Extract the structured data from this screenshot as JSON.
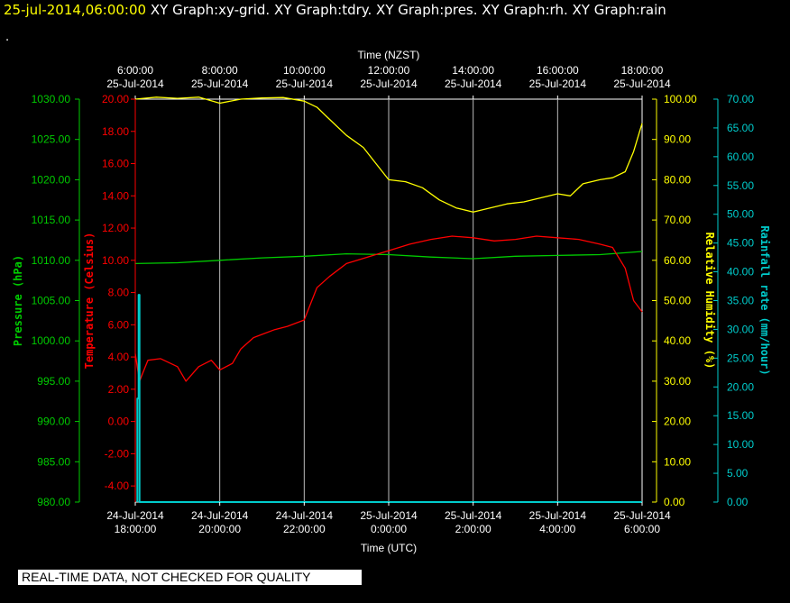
{
  "header": {
    "datetime": "25-jul-2014,06:00:00",
    "graph_titles": "XY Graph:xy-grid.  XY Graph:tdry.  XY Graph:pres.  XY Graph:rh.  XY Graph:rain"
  },
  "dot": ".",
  "disclaimer": "REAL-TIME DATA, NOT CHECKED FOR QUALITY",
  "colors": {
    "pressure": "#00cc00",
    "temperature": "#ff0000",
    "humidity": "#ffff00",
    "rainfall": "#00cccc",
    "grid": "#ffffff",
    "background": "#000000"
  },
  "chart_data": {
    "type": "line",
    "title": "",
    "x_top_label": "Time (NZST)",
    "x_bottom_label": "Time (UTC)",
    "x_range_hours_nzst": [
      6,
      18
    ],
    "x_ticks_top": [
      {
        "time": "6:00:00",
        "date": "25-Jul-2014"
      },
      {
        "time": "8:00:00",
        "date": "25-Jul-2014"
      },
      {
        "time": "10:00:00",
        "date": "25-Jul-2014"
      },
      {
        "time": "12:00:00",
        "date": "25-Jul-2014"
      },
      {
        "time": "14:00:00",
        "date": "25-Jul-2014"
      },
      {
        "time": "16:00:00",
        "date": "25-Jul-2014"
      },
      {
        "time": "18:00:00",
        "date": "25-Jul-2014"
      }
    ],
    "x_ticks_bottom": [
      {
        "date": "24-Jul-2014",
        "time": "18:00:00"
      },
      {
        "date": "24-Jul-2014",
        "time": "20:00:00"
      },
      {
        "date": "24-Jul-2014",
        "time": "22:00:00"
      },
      {
        "date": "25-Jul-2014",
        "time": "0:00:00"
      },
      {
        "date": "25-Jul-2014",
        "time": "2:00:00"
      },
      {
        "date": "25-Jul-2014",
        "time": "4:00:00"
      },
      {
        "date": "25-Jul-2014",
        "time": "6:00:00"
      }
    ],
    "axes": {
      "pressure": {
        "label": "Pressure (hPa)",
        "range": [
          980,
          1030
        ],
        "ticks": [
          "980.00",
          "985.00",
          "990.00",
          "995.00",
          "1000.00",
          "1005.00",
          "1010.00",
          "1015.00",
          "1020.00",
          "1025.00",
          "1030.00"
        ]
      },
      "temperature": {
        "label": "Temperature (Celsius)",
        "range": [
          -5,
          20
        ],
        "ticks": [
          "-4.00",
          "-2.00",
          "0.00",
          "2.00",
          "4.00",
          "6.00",
          "8.00",
          "10.00",
          "12.00",
          "14.00",
          "16.00",
          "18.00",
          "20.00"
        ]
      },
      "humidity": {
        "label": "Relative Humidity (%)",
        "range": [
          0,
          100
        ],
        "ticks": [
          "0.00",
          "10.00",
          "20.00",
          "30.00",
          "40.00",
          "50.00",
          "60.00",
          "70.00",
          "80.00",
          "90.00",
          "100.00"
        ]
      },
      "rainfall": {
        "label": "Rainfall rate (mm/hour)",
        "range": [
          0,
          70
        ],
        "ticks": [
          "0.00",
          "5.00",
          "10.00",
          "15.00",
          "20.00",
          "25.00",
          "30.00",
          "35.00",
          "40.00",
          "45.00",
          "50.00",
          "55.00",
          "60.00",
          "65.00",
          "70.00"
        ]
      }
    },
    "series": [
      {
        "name": "Pressure",
        "axis": "pressure",
        "x": [
          6.0,
          7.0,
          8.0,
          9.0,
          10.0,
          11.0,
          12.0,
          13.0,
          14.0,
          15.0,
          16.0,
          17.0,
          18.0
        ],
        "y": [
          1009.6,
          1009.7,
          1010.0,
          1010.3,
          1010.5,
          1010.8,
          1010.7,
          1010.4,
          1010.2,
          1010.5,
          1010.6,
          1010.7,
          1011.1
        ]
      },
      {
        "name": "Temperature",
        "axis": "temperature",
        "x": [
          6.0,
          6.1,
          6.3,
          6.6,
          7.0,
          7.2,
          7.5,
          7.8,
          8.0,
          8.3,
          8.5,
          8.8,
          9.0,
          9.3,
          9.6,
          10.0,
          10.3,
          10.6,
          11.0,
          11.5,
          12.0,
          12.5,
          13.0,
          13.5,
          14.0,
          14.5,
          15.0,
          15.5,
          16.0,
          16.5,
          17.0,
          17.3,
          17.6,
          17.8,
          18.0
        ],
        "y": [
          4.2,
          2.5,
          3.8,
          3.9,
          3.4,
          2.5,
          3.4,
          3.8,
          3.2,
          3.6,
          4.5,
          5.2,
          5.4,
          5.7,
          5.9,
          6.3,
          8.3,
          9.0,
          9.8,
          10.2,
          10.6,
          11.0,
          11.3,
          11.5,
          11.4,
          11.2,
          11.3,
          11.5,
          11.4,
          11.3,
          11.0,
          10.8,
          9.5,
          7.5,
          6.8
        ]
      },
      {
        "name": "Relative Humidity",
        "axis": "humidity",
        "x": [
          6.0,
          6.5,
          7.0,
          7.5,
          8.0,
          8.5,
          9.0,
          9.5,
          10.0,
          10.3,
          10.6,
          11.0,
          11.4,
          11.7,
          12.0,
          12.4,
          12.8,
          13.2,
          13.6,
          14.0,
          14.4,
          14.8,
          15.2,
          15.6,
          16.0,
          16.3,
          16.6,
          17.0,
          17.3,
          17.6,
          17.8,
          18.0
        ],
        "y": [
          100.0,
          100.5,
          100.2,
          100.5,
          99.0,
          100.0,
          100.3,
          100.4,
          99.5,
          98.0,
          95.0,
          91.0,
          88.0,
          84.0,
          80.0,
          79.5,
          78.0,
          75.0,
          73.0,
          72.0,
          73.0,
          74.0,
          74.5,
          75.5,
          76.5,
          76.0,
          79.0,
          80.0,
          80.5,
          82.0,
          87.0,
          94.0
        ]
      },
      {
        "name": "Rainfall rate",
        "axis": "rainfall",
        "x": [
          6.05,
          6.05,
          6.08,
          6.08,
          6.1,
          6.1,
          18.0
        ],
        "y": [
          0.0,
          18.0,
          18.0,
          36.0,
          36.0,
          0.0,
          0.0
        ]
      }
    ]
  }
}
